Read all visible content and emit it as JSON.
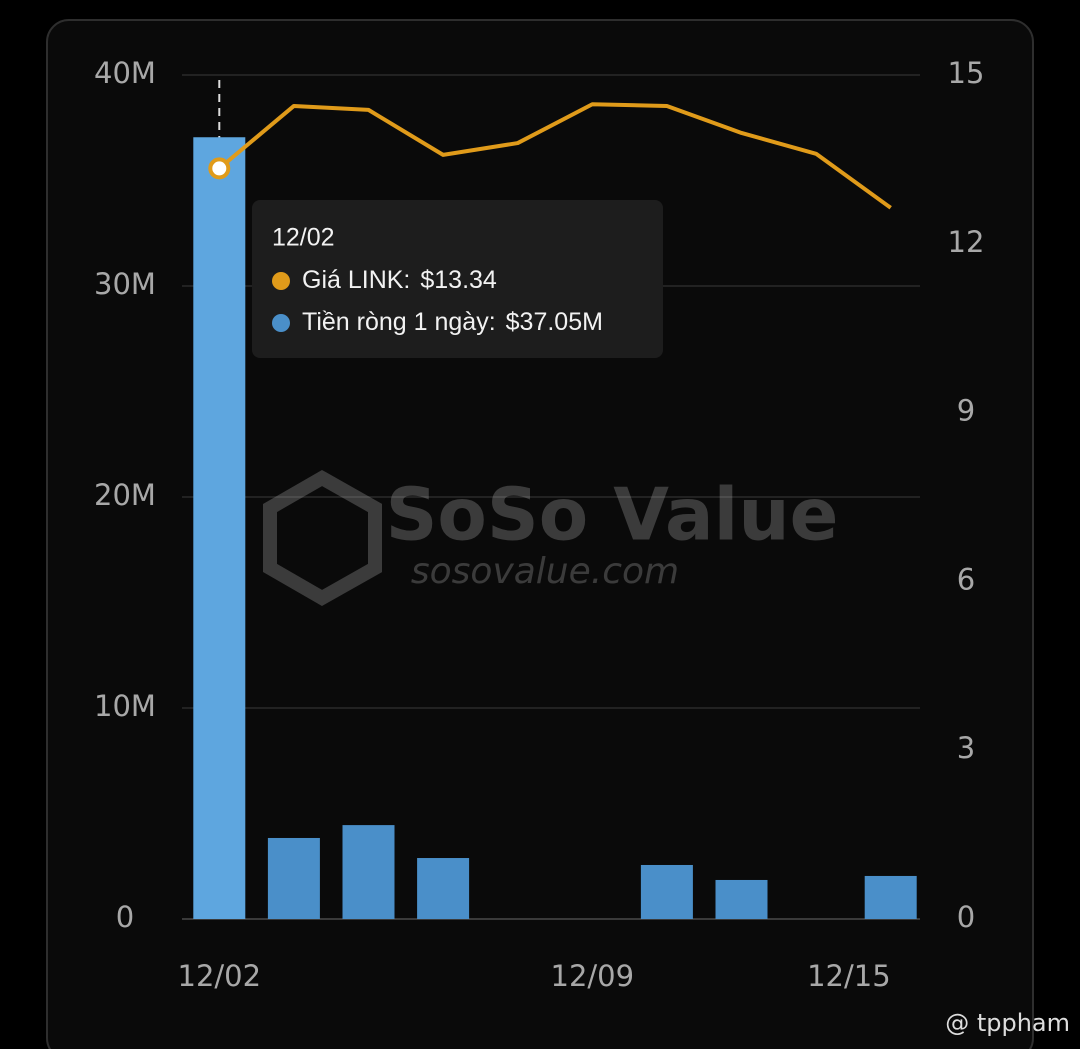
{
  "chart_data": {
    "type": "bar_line",
    "categories": [
      "12/02",
      null,
      null,
      null,
      null,
      "12/09",
      null,
      null,
      null,
      "12/15"
    ],
    "series": [
      {
        "name": "Tiền ròng 1 ngày",
        "type": "bar",
        "color": "#4a8fc9",
        "highlight_color": "#5ea6df",
        "values": [
          37050000,
          3840000,
          4450000,
          2890000,
          0,
          0,
          2560000,
          1850000,
          0,
          2040000
        ]
      },
      {
        "name": "Giá LINK",
        "type": "line",
        "axis": "y2",
        "color": "#e09b1a",
        "values": [
          13.34,
          14.45,
          14.38,
          13.58,
          13.79,
          14.48,
          14.45,
          13.97,
          13.6,
          12.64
        ]
      }
    ],
    "ylim": [
      0,
      40000000
    ],
    "yticks": [
      0,
      {
        "value": 10000000,
        "label": "10M"
      },
      {
        "value": 20000000,
        "label": "20M"
      },
      {
        "value": 30000000,
        "label": "30M"
      },
      {
        "value": 40000000,
        "label": "40M"
      }
    ],
    "y2lim": [
      0,
      15
    ],
    "y2ticks": [
      0,
      3,
      6,
      9,
      12,
      15
    ],
    "grid": true,
    "highlight_index": 0,
    "tooltip": {
      "title": "12/02",
      "rows": [
        {
          "label": "Giá LINK:",
          "value": "$13.34",
          "color": "#e09b1a"
        },
        {
          "label": "Tiền ròng 1 ngày:",
          "value": "$37.05M",
          "color": "#4a8fc9"
        }
      ]
    },
    "watermark": {
      "brand": "SoSo Value",
      "site": "sosovalue.com"
    },
    "credit": "@ tppham"
  }
}
